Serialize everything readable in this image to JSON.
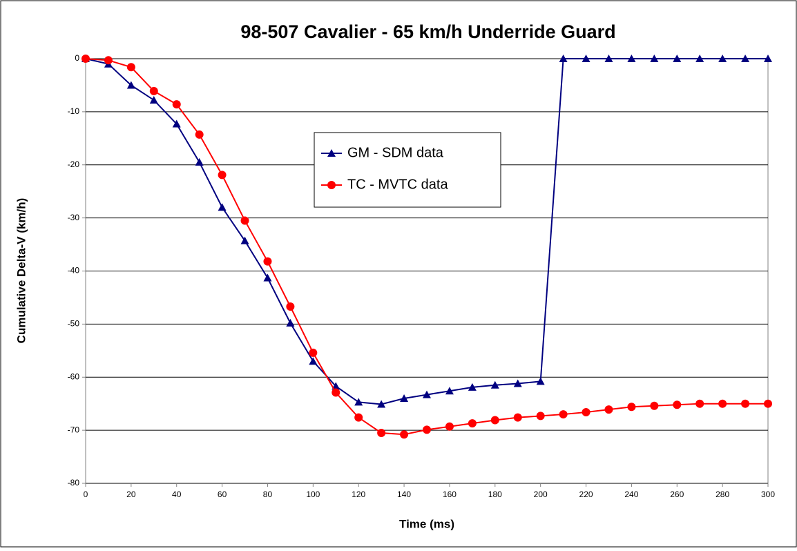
{
  "chart_data": {
    "type": "line",
    "title": "98-507 Cavalier  -  65 km/h Underride Guard",
    "x_label": "Time (ms)",
    "y_label": "Cumulative Delta-V (km/h)",
    "x": [
      0,
      10,
      20,
      30,
      40,
      50,
      60,
      70,
      80,
      90,
      100,
      110,
      120,
      130,
      140,
      150,
      160,
      170,
      180,
      190,
      200,
      210,
      220,
      230,
      240,
      250,
      260,
      270,
      280,
      290,
      300
    ],
    "series": [
      {
        "name": "GM - SDM data",
        "color": "#000080",
        "marker": "triangle",
        "values": [
          0,
          -1,
          -5,
          -7.8,
          -12.3,
          -19.5,
          -28,
          -34.3,
          -41.3,
          -49.8,
          -57,
          -61.7,
          -64.7,
          -65.1,
          -64,
          -63.3,
          -62.6,
          -61.9,
          -61.5,
          -61.2,
          -60.8,
          0,
          0,
          0,
          0,
          0,
          0,
          0,
          0,
          0,
          0
        ]
      },
      {
        "name": "TC - MVTC data",
        "color": "#ff0000",
        "marker": "circle",
        "values": [
          0,
          -0.3,
          -1.6,
          -6.1,
          -8.6,
          -14.3,
          -21.9,
          -30.5,
          -38.2,
          -46.7,
          -55.4,
          -62.9,
          -67.6,
          -70.5,
          -70.8,
          -69.9,
          -69.3,
          -68.7,
          -68.1,
          -67.6,
          -67.3,
          -67,
          -66.6,
          -66.1,
          -65.6,
          -65.4,
          -65.2,
          -65,
          -65,
          -65,
          -65
        ]
      }
    ],
    "xlim": [
      0,
      300
    ],
    "xticks": [
      0,
      20,
      40,
      60,
      80,
      100,
      120,
      140,
      160,
      180,
      200,
      220,
      240,
      260,
      280,
      300
    ],
    "ylim": [
      -80,
      0
    ],
    "yticks": [
      -80,
      -70,
      -60,
      -50,
      -40,
      -30,
      -20,
      -10,
      0
    ],
    "grid": true
  }
}
